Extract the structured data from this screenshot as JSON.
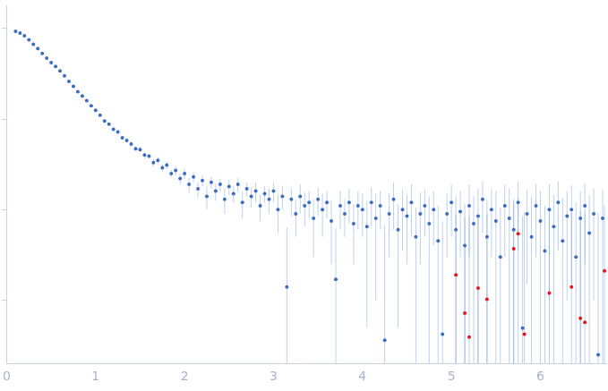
{
  "chart_data": {
    "type": "scatter",
    "xlim": [
      0,
      6.74
    ],
    "xticks": [
      0,
      1,
      2,
      3,
      4,
      5,
      6
    ],
    "ylim": [
      0.002,
      18
    ],
    "yticks": [
      0.01,
      0.1,
      1,
      10
    ],
    "log": "y",
    "tick_labels": "x",
    "grid": false,
    "series": [
      {
        "color": "#3b6cc4",
        "x": [
          0.1,
          0.15,
          0.2,
          0.25,
          0.3,
          0.35,
          0.4,
          0.45,
          0.5,
          0.55,
          0.6,
          0.65,
          0.7,
          0.75,
          0.8,
          0.85,
          0.9,
          0.95,
          1.0,
          1.05,
          1.1,
          1.15,
          1.2,
          1.25,
          1.3,
          1.35,
          1.4,
          1.45,
          1.5,
          1.55,
          1.6,
          1.65,
          1.7,
          1.75,
          1.8,
          1.85,
          1.9,
          1.95,
          2.0,
          2.05,
          2.1,
          2.15,
          2.2,
          2.25,
          2.3,
          2.35,
          2.4,
          2.45,
          2.5,
          2.55,
          2.6,
          2.65,
          2.7,
          2.75,
          2.8,
          2.85,
          2.9,
          2.95,
          3.0,
          3.05,
          3.1,
          3.15,
          3.2,
          3.25,
          3.3,
          3.35,
          3.4,
          3.45,
          3.5,
          3.55,
          3.6,
          3.65,
          3.7,
          3.75,
          3.8,
          3.85,
          3.9,
          3.95,
          4.0,
          4.05,
          4.1,
          4.15,
          4.2,
          4.25,
          4.3,
          4.35,
          4.4,
          4.45,
          4.5,
          4.55,
          4.6,
          4.65,
          4.7,
          4.75,
          4.8,
          4.85,
          4.9,
          4.95,
          5.0,
          5.05,
          5.1,
          5.15,
          5.2,
          5.25,
          5.3,
          5.35,
          5.4,
          5.45,
          5.5,
          5.55,
          5.6,
          5.65,
          5.7,
          5.75,
          5.8,
          5.85,
          5.9,
          5.95,
          6.0,
          6.05,
          6.1,
          6.15,
          6.2,
          6.25,
          6.3,
          6.35,
          6.4,
          6.45,
          6.5,
          6.55,
          6.6,
          6.65,
          6.7
        ],
        "values": [
          9.3,
          8.9,
          8.3,
          7.5,
          6.7,
          6.0,
          5.3,
          4.7,
          4.2,
          3.8,
          3.4,
          3.0,
          2.6,
          2.3,
          2.0,
          1.8,
          1.6,
          1.4,
          1.25,
          1.1,
          0.95,
          0.88,
          0.77,
          0.72,
          0.62,
          0.58,
          0.53,
          0.47,
          0.46,
          0.4,
          0.39,
          0.33,
          0.35,
          0.29,
          0.31,
          0.25,
          0.27,
          0.22,
          0.25,
          0.19,
          0.23,
          0.17,
          0.21,
          0.14,
          0.2,
          0.16,
          0.19,
          0.13,
          0.18,
          0.15,
          0.19,
          0.12,
          0.17,
          0.14,
          0.16,
          0.11,
          0.15,
          0.13,
          0.16,
          0.1,
          0.14,
          0.014,
          0.13,
          0.09,
          0.14,
          0.11,
          0.12,
          0.08,
          0.13,
          0.1,
          0.12,
          0.075,
          0.017,
          0.11,
          0.09,
          0.12,
          0.07,
          0.11,
          0.1,
          0.065,
          0.12,
          0.08,
          0.11,
          0.0036,
          0.09,
          0.13,
          0.06,
          0.1,
          0.085,
          0.12,
          0.05,
          0.09,
          0.11,
          0.07,
          0.1,
          0.045,
          0.0042,
          0.09,
          0.12,
          0.06,
          0.095,
          0.04,
          0.11,
          0.07,
          0.085,
          0.13,
          0.05,
          0.1,
          0.075,
          0.03,
          0.11,
          0.08,
          0.06,
          0.12,
          0.0049,
          0.09,
          0.05,
          0.11,
          0.075,
          0.035,
          0.1,
          0.065,
          0.12,
          0.045,
          0.085,
          0.1,
          0.03,
          0.08,
          0.11,
          0.055,
          0.09,
          0.0025,
          0.08
        ],
        "errors": [
          0.19,
          0.18,
          0.17,
          0.15,
          0.13,
          0.12,
          0.11,
          0.09,
          0.08,
          0.08,
          0.07,
          0.06,
          0.05,
          0.05,
          0.04,
          0.04,
          0.03,
          0.03,
          0.03,
          0.03,
          0.03,
          0.03,
          0.025,
          0.03,
          0.025,
          0.03,
          0.03,
          0.025,
          0.03,
          0.03,
          0.025,
          0.03,
          0.03,
          0.025,
          0.03,
          0.025,
          0.03,
          0.03,
          0.03,
          0.035,
          0.03,
          0.035,
          0.03,
          0.04,
          0.03,
          0.035,
          0.03,
          0.04,
          0.035,
          0.03,
          0.035,
          0.04,
          0.03,
          0.035,
          0.04,
          0.035,
          0.03,
          0.04,
          0.04,
          0.045,
          0.04,
          0.05,
          0.045,
          0.04,
          0.05,
          0.045,
          0.04,
          0.05,
          0.045,
          0.05,
          0.04,
          0.05,
          0.045,
          0.05,
          0.04,
          0.05,
          0.045,
          0.05,
          0.05,
          0.06,
          0.055,
          0.07,
          0.05,
          0.065,
          0.06,
          0.07,
          0.055,
          0.065,
          0.06,
          0.07,
          0.055,
          0.065,
          0.06,
          0.07,
          0.06,
          0.065,
          0.07,
          0.06,
          0.07,
          0.08,
          0.065,
          0.075,
          0.08,
          0.07,
          0.085,
          0.075,
          0.08,
          0.07,
          0.085,
          0.075,
          0.08,
          0.09,
          0.07,
          0.085,
          0.08,
          0.075,
          0.09,
          0.08,
          0.085,
          0.075,
          0.09,
          0.08,
          0.085,
          0.09,
          0.075,
          0.085,
          0.09,
          0.08,
          0.085,
          0.09,
          0.08,
          0.09,
          0.085
        ]
      },
      {
        "color": "#e8141c",
        "x": [
          5.05,
          5.15,
          5.2,
          5.3,
          5.4,
          5.7,
          5.75,
          5.82,
          6.1,
          6.35,
          6.45,
          6.5,
          6.72
        ],
        "values": [
          0.019,
          0.0072,
          0.0039,
          0.0136,
          0.0102,
          0.037,
          0.054,
          0.0042,
          0.012,
          0.014,
          0.0063,
          0.0057,
          0.021
        ],
        "errors": [
          0.07,
          0.075,
          0.08,
          0.07,
          0.08,
          0.085,
          0.08,
          0.09,
          0.085,
          0.08,
          0.09,
          0.085,
          0.09
        ]
      }
    ]
  }
}
